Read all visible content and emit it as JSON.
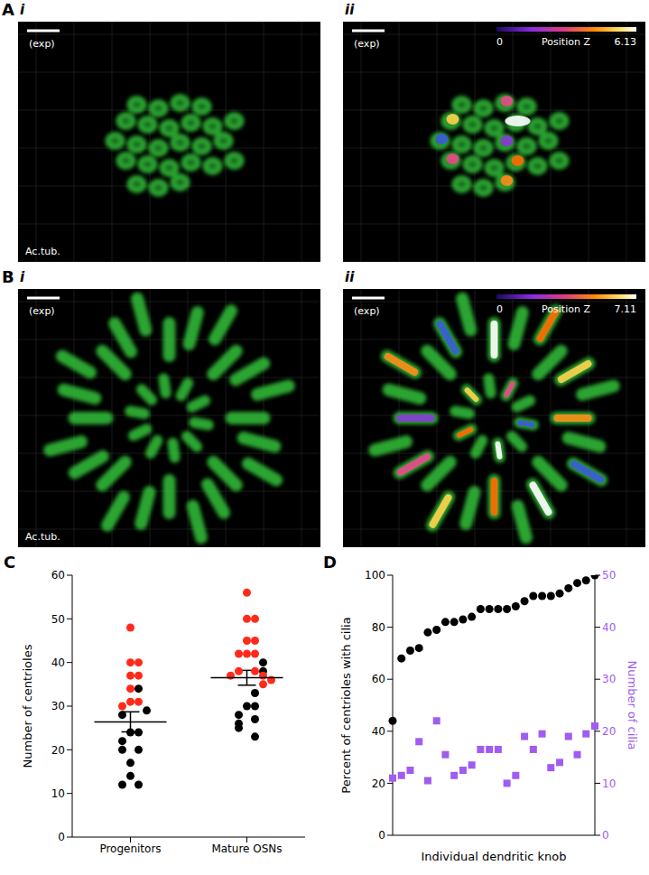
{
  "images": [
    {
      "panel": "A",
      "views": [
        {
          "sub": "i",
          "scale_label": "(exp)",
          "stain": "Ac.tub."
        },
        {
          "sub": "ii",
          "scale_label": "(exp)",
          "colorbar": {
            "label": "Position Z",
            "min": 0,
            "max": 6.13
          }
        }
      ]
    },
    {
      "panel": "B",
      "views": [
        {
          "sub": "i",
          "scale_label": "(exp)",
          "stain": "Ac.tub."
        },
        {
          "sub": "ii",
          "scale_label": "(exp)",
          "colorbar": {
            "label": "Position Z",
            "min": 0,
            "max": 7.11
          }
        }
      ]
    }
  ],
  "chart_data": [
    {
      "panel": "C",
      "type": "scatter",
      "y_label": "Number of centrioles",
      "categories": [
        "Progenitors",
        "Mature OSNs"
      ],
      "values": [
        [
          48,
          40,
          40,
          37,
          37,
          34,
          34,
          31,
          31,
          30,
          29,
          28,
          24,
          24,
          22,
          20,
          20,
          17,
          14,
          12,
          12
        ],
        [
          56,
          50,
          50,
          45,
          45,
          42,
          42,
          42,
          40,
          38,
          38,
          38,
          37,
          37,
          36,
          35,
          33,
          30,
          30,
          28,
          27,
          26,
          25,
          23
        ]
      ],
      "colors": [
        [
          "#ff2a1a",
          "#ff2a1a",
          "#ff2a1a",
          "#ff2a1a",
          "#ff2a1a",
          "#ff2a1a",
          "#000000",
          "#ff2a1a",
          "#ff2a1a",
          "#ff2a1a",
          "#000000",
          "#000000",
          "#000000",
          "#000000",
          "#000000",
          "#000000",
          "#000000",
          "#000000",
          "#000000",
          "#000000",
          "#000000"
        ],
        [
          "#ff2a1a",
          "#ff2a1a",
          "#ff2a1a",
          "#ff2a1a",
          "#ff2a1a",
          "#ff2a1a",
          "#ff2a1a",
          "#ff2a1a",
          "#000000",
          "#ff2a1a",
          "#ff2a1a",
          "#000000",
          "#ff2a1a",
          "#ff2a1a",
          "#ff2a1a",
          "#ff2a1a",
          "#000000",
          "#000000",
          "#000000",
          "#000000",
          "#000000",
          "#000000",
          "#000000",
          "#000000"
        ]
      ],
      "mean": [
        26.4,
        36.5
      ],
      "sem": [
        2.3,
        1.7
      ],
      "ylim": [
        0,
        60
      ],
      "yticks": [
        0,
        10,
        20,
        30,
        40,
        50,
        60
      ]
    },
    {
      "panel": "D",
      "type": "scatter",
      "x_label": "Individual dendritic knob",
      "categories": [
        null,
        null,
        null,
        null,
        null,
        null,
        null,
        null,
        null,
        null,
        null,
        null,
        null,
        null,
        null,
        null,
        null,
        null,
        null,
        null,
        null,
        null,
        null,
        null
      ],
      "tick_labels": "y",
      "series": [
        {
          "name": "Percent of centrioles with cilia",
          "color": "#000000",
          "marker": "circle",
          "values": [
            44,
            68,
            71,
            72,
            78,
            79,
            82,
            82,
            83,
            84,
            87,
            87,
            87,
            87,
            88,
            90,
            92,
            92,
            92,
            93,
            95,
            97,
            98,
            100
          ]
        },
        {
          "name": "Number of cilia",
          "color": "#a05cf0",
          "marker": "square",
          "axis": "y2",
          "values": [
            11,
            11.5,
            12.5,
            18,
            10.5,
            22,
            15.5,
            11.5,
            12.5,
            13.5,
            16.5,
            16.5,
            16.5,
            10,
            11.5,
            19,
            16.5,
            19.5,
            13,
            14,
            19,
            15.5,
            19.5,
            21
          ]
        }
      ],
      "ylim": [
        0,
        100
      ],
      "yticks": [
        0,
        20,
        40,
        60,
        80,
        100
      ],
      "y2lim": [
        0,
        50
      ],
      "y2ticks": [
        0,
        10,
        20,
        30,
        40,
        50
      ]
    }
  ]
}
